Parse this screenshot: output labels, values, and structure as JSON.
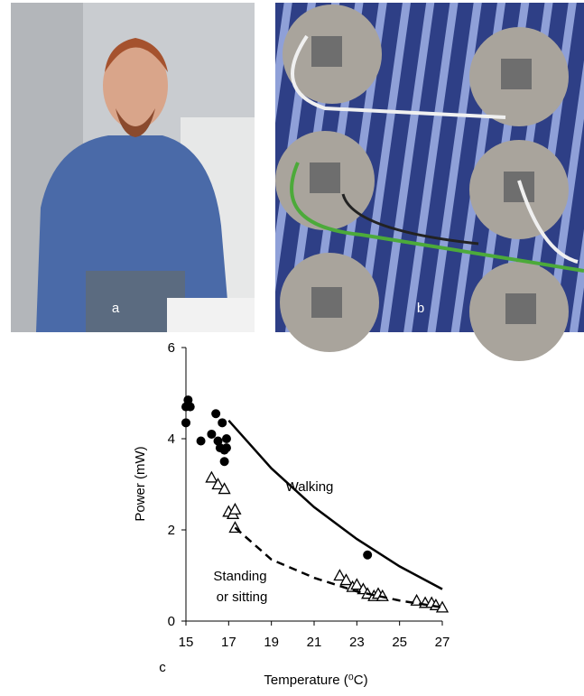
{
  "panels": [
    {
      "label": "a"
    },
    {
      "label": "b"
    }
  ],
  "chart_data": {
    "type": "scatter",
    "panel_label": "c",
    "x_label": "Temperature (⁰C)",
    "y_label": "Power (mW)",
    "xlim": [
      15,
      27
    ],
    "xticks": [
      15,
      17,
      19,
      21,
      23,
      25,
      27
    ],
    "ylim": [
      0,
      6
    ],
    "yticks": [
      0,
      2,
      4,
      6
    ],
    "annotations": [
      "Walking",
      "Standing",
      "or sitting"
    ],
    "series": [
      {
        "marker": "circle-filled",
        "color": "#000000",
        "x": [
          15,
          15,
          15.1,
          15.2,
          15.7,
          16.2,
          16.4,
          16.5,
          16.6,
          16.7,
          16.8,
          16.8,
          16.9,
          16.9,
          23.5
        ],
        "values": [
          4.35,
          4.7,
          4.85,
          4.7,
          3.95,
          4.1,
          4.55,
          3.95,
          3.8,
          4.35,
          3.75,
          3.5,
          4.0,
          3.8,
          1.45
        ]
      },
      {
        "marker": "triangle-open",
        "color": "#000000",
        "x": [
          16.2,
          16.5,
          16.8,
          17.0,
          17.2,
          17.3,
          17.3,
          22.2,
          22.5,
          22.8,
          23.0,
          23.3,
          23.5,
          23.8,
          24.0,
          24.2,
          25.8,
          26.2,
          26.5,
          26.7,
          27.0
        ],
        "values": [
          3.15,
          3.0,
          2.9,
          2.4,
          2.35,
          2.45,
          2.05,
          1.0,
          0.9,
          0.75,
          0.8,
          0.7,
          0.6,
          0.55,
          0.6,
          0.55,
          0.45,
          0.4,
          0.4,
          0.35,
          0.3
        ]
      },
      {
        "marker": "line-solid",
        "color": "#000000",
        "x": [
          17,
          19,
          21,
          23,
          25,
          27
        ],
        "values": [
          4.4,
          3.35,
          2.5,
          1.8,
          1.2,
          0.7
        ]
      },
      {
        "marker": "line-dashed",
        "color": "#000000",
        "x": [
          17.3,
          19,
          21,
          23,
          25,
          27
        ],
        "values": [
          2.05,
          1.35,
          0.95,
          0.65,
          0.45,
          0.3
        ]
      }
    ]
  }
}
